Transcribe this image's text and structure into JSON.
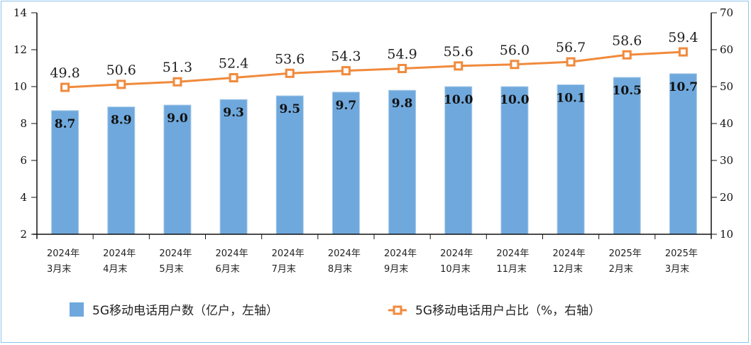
{
  "chart_data": {
    "type": "bar",
    "title": "",
    "categories": [
      [
        "2024年",
        "3月末"
      ],
      [
        "2024年",
        "4月末"
      ],
      [
        "2024年",
        "5月末"
      ],
      [
        "2024年",
        "6月末"
      ],
      [
        "2024年",
        "7月末"
      ],
      [
        "2024年",
        "8月末"
      ],
      [
        "2024年",
        "9月末"
      ],
      [
        "2024年",
        "10月末"
      ],
      [
        "2024年",
        "11月末"
      ],
      [
        "2024年",
        "12月末"
      ],
      [
        "2025年",
        "2月末"
      ],
      [
        "2025年",
        "3月末"
      ]
    ],
    "series": [
      {
        "name": "5G移动电话用户数（亿户，左轴）",
        "type": "bar",
        "axis": "left",
        "color": "#6fa8dc",
        "values": [
          8.7,
          8.9,
          9.0,
          9.3,
          9.5,
          9.7,
          9.8,
          10.0,
          10.0,
          10.1,
          10.5,
          10.7
        ],
        "labels": [
          "8.7",
          "8.9",
          "9.0",
          "9.3",
          "9.5",
          "9.7",
          "9.8",
          "10.0",
          "10.0",
          "10.1",
          "10.5",
          "10.7"
        ]
      },
      {
        "name": "5G移动电话用户占比（%，右轴）",
        "type": "line",
        "axis": "right",
        "color": "#f08a3c",
        "values": [
          49.8,
          50.6,
          51.3,
          52.4,
          53.6,
          54.3,
          54.9,
          55.6,
          56.0,
          56.7,
          58.6,
          59.4
        ],
        "labels": [
          "49.8",
          "50.6",
          "51.3",
          "52.4",
          "53.6",
          "54.3",
          "54.9",
          "55.6",
          "56.0",
          "56.7",
          "58.6",
          "59.4"
        ]
      }
    ],
    "y_left": {
      "range": [
        2,
        14
      ],
      "ticks": [
        "2",
        "4",
        "6",
        "8",
        "10",
        "12",
        "14"
      ]
    },
    "y_right": {
      "range": [
        10,
        70
      ],
      "ticks": [
        "10",
        "20",
        "30",
        "40",
        "50",
        "60",
        "70"
      ]
    },
    "grid": false,
    "legend_position": "bottom"
  }
}
